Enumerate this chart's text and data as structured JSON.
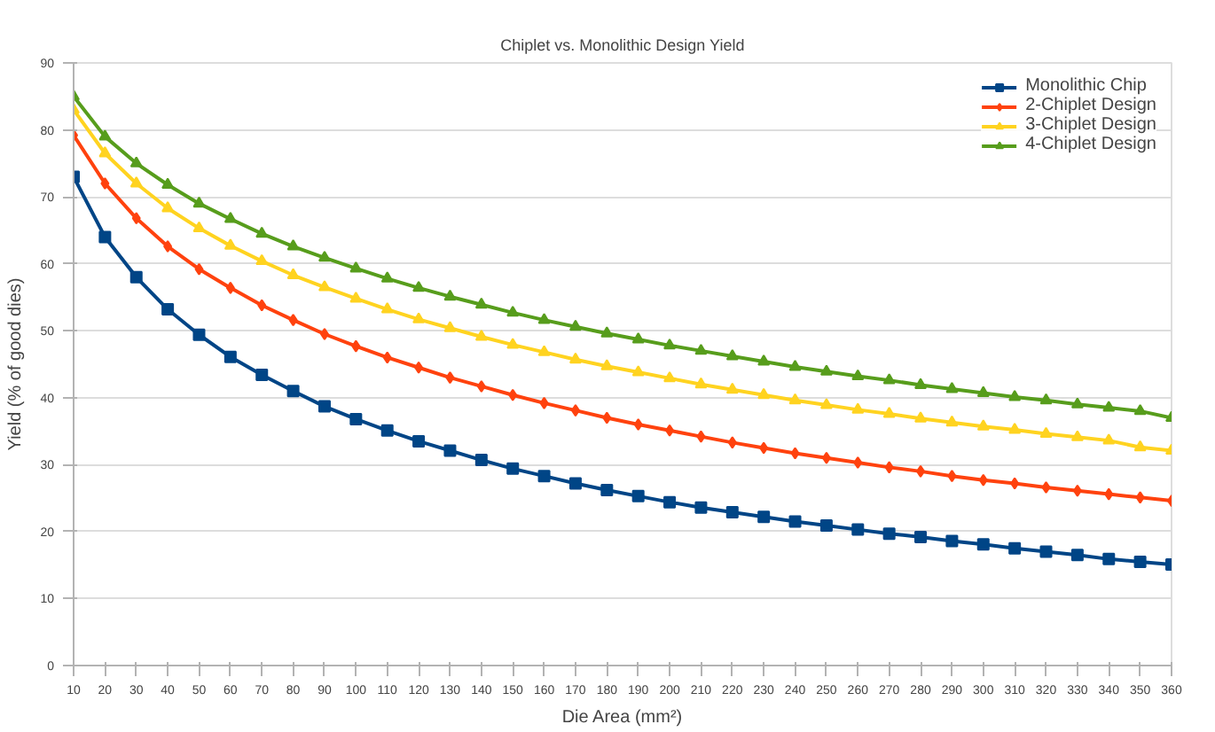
{
  "chart_data": {
    "type": "line",
    "title": "Chiplet vs. Monolithic Design Yield",
    "xlabel": "Die Area (mm²)",
    "ylabel": "Yield (% of good dies)",
    "x": [
      10,
      20,
      30,
      40,
      50,
      60,
      70,
      80,
      90,
      100,
      110,
      120,
      130,
      140,
      150,
      160,
      170,
      180,
      190,
      200,
      210,
      220,
      230,
      240,
      250,
      260,
      270,
      280,
      290,
      300,
      310,
      320,
      330,
      340,
      350,
      360
    ],
    "series": [
      {
        "name": "Monolithic Chip",
        "color": "#004586",
        "marker": "square",
        "values": [
          73,
          64,
          58,
          53.2,
          49.4,
          46.1,
          43.4,
          41,
          38.7,
          36.8,
          35.1,
          33.5,
          32.1,
          30.7,
          29.4,
          28.3,
          27.2,
          26.2,
          25.3,
          24.4,
          23.6,
          22.9,
          22.2,
          21.5,
          20.9,
          20.3,
          19.7,
          19.2,
          18.6,
          18.1,
          17.5,
          17.0,
          16.5,
          15.9,
          15.5,
          15.1
        ]
      },
      {
        "name": "2-Chiplet Design",
        "color": "#ff420e",
        "marker": "diamond",
        "values": [
          79.2,
          72,
          66.8,
          62.6,
          59.2,
          56.4,
          53.8,
          51.6,
          49.5,
          47.7,
          46,
          44.5,
          43,
          41.7,
          40.4,
          39.2,
          38.1,
          37,
          36,
          35.1,
          34.2,
          33.3,
          32.5,
          31.7,
          31,
          30.3,
          29.6,
          29,
          28.3,
          27.7,
          27.2,
          26.6,
          26.1,
          25.6,
          25.1,
          24.6
        ]
      },
      {
        "name": "3-Chiplet Design",
        "color": "#ffd320",
        "marker": "triangle",
        "values": [
          83,
          76.5,
          72,
          68.3,
          65.3,
          62.7,
          60.4,
          58.3,
          56.5,
          54.8,
          53.2,
          51.7,
          50.4,
          49.1,
          47.9,
          46.8,
          45.7,
          44.7,
          43.8,
          42.9,
          42,
          41.2,
          40.4,
          39.6,
          38.9,
          38.2,
          37.6,
          36.9,
          36.3,
          35.7,
          35.2,
          34.6,
          34.1,
          33.6,
          32.6,
          32.1
        ]
      },
      {
        "name": "4-Chiplet Design",
        "color": "#579d1c",
        "marker": "triangle",
        "values": [
          85,
          79,
          75,
          71.8,
          69,
          66.7,
          64.5,
          62.6,
          60.9,
          59.3,
          57.8,
          56.4,
          55.1,
          53.9,
          52.7,
          51.6,
          50.6,
          49.6,
          48.7,
          47.8,
          47,
          46.2,
          45.4,
          44.6,
          43.9,
          43.2,
          42.6,
          41.9,
          41.3,
          40.7,
          40.1,
          39.6,
          39,
          38.5,
          38,
          37
        ]
      }
    ],
    "xlim": [
      10,
      360
    ],
    "xticks": [
      10,
      20,
      30,
      40,
      50,
      60,
      70,
      80,
      90,
      100,
      110,
      120,
      130,
      140,
      150,
      160,
      170,
      180,
      190,
      200,
      210,
      220,
      230,
      240,
      250,
      260,
      270,
      280,
      290,
      300,
      310,
      320,
      330,
      340,
      350,
      360
    ],
    "ylim": [
      0,
      90
    ],
    "yticks": [
      0,
      10,
      20,
      30,
      40,
      50,
      60,
      70,
      80,
      90
    ],
    "grid": "y",
    "legend": "top right",
    "line_style": "solid"
  }
}
